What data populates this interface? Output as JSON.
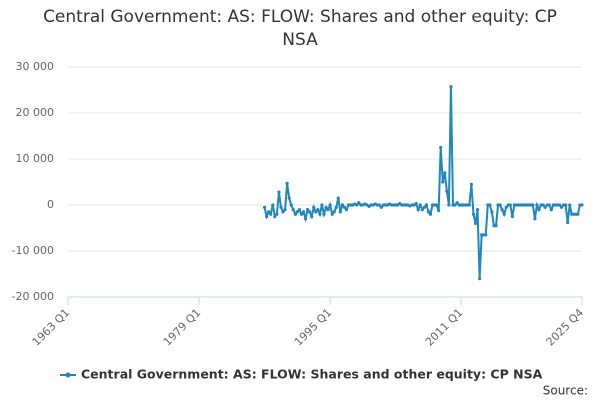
{
  "chart_data": {
    "type": "line",
    "title": "Central Government: AS: FLOW: Shares and other equity: CP NSA",
    "source": "Source:",
    "x": [
      "1987 Q1",
      "1987 Q2",
      "1987 Q3",
      "1987 Q4",
      "1988 Q1",
      "1988 Q2",
      "1988 Q3",
      "1988 Q4",
      "1989 Q1",
      "1989 Q2",
      "1989 Q3",
      "1989 Q4",
      "1990 Q1",
      "1990 Q2",
      "1990 Q3",
      "1990 Q4",
      "1991 Q1",
      "1991 Q2",
      "1991 Q3",
      "1991 Q4",
      "1992 Q1",
      "1992 Q2",
      "1992 Q3",
      "1992 Q4",
      "1993 Q1",
      "1993 Q2",
      "1993 Q3",
      "1993 Q4",
      "1994 Q1",
      "1994 Q2",
      "1994 Q3",
      "1994 Q4",
      "1995 Q1",
      "1995 Q2",
      "1995 Q3",
      "1995 Q4",
      "1996 Q1",
      "1996 Q2",
      "1996 Q3",
      "1996 Q4",
      "1997 Q1",
      "1997 Q2",
      "1997 Q3",
      "1997 Q4",
      "1998 Q1",
      "1998 Q2",
      "1998 Q3",
      "1998 Q4",
      "1999 Q1",
      "1999 Q2",
      "1999 Q3",
      "1999 Q4",
      "2000 Q1",
      "2000 Q2",
      "2000 Q3",
      "2000 Q4",
      "2001 Q1",
      "2001 Q2",
      "2001 Q3",
      "2001 Q4",
      "2002 Q1",
      "2002 Q2",
      "2002 Q3",
      "2002 Q4",
      "2003 Q1",
      "2003 Q2",
      "2003 Q3",
      "2003 Q4",
      "2004 Q1",
      "2004 Q2",
      "2004 Q3",
      "2004 Q4",
      "2005 Q1",
      "2005 Q2",
      "2005 Q3",
      "2005 Q4",
      "2006 Q1",
      "2006 Q2",
      "2006 Q3",
      "2006 Q4",
      "2007 Q1",
      "2007 Q2",
      "2007 Q3",
      "2007 Q4",
      "2008 Q1",
      "2008 Q2",
      "2008 Q3",
      "2008 Q4",
      "2009 Q1",
      "2009 Q2",
      "2009 Q3",
      "2009 Q4",
      "2010 Q1",
      "2010 Q2",
      "2010 Q3",
      "2010 Q4",
      "2011 Q1",
      "2011 Q2",
      "2011 Q3",
      "2011 Q4",
      "2012 Q1",
      "2012 Q2",
      "2012 Q3",
      "2012 Q4",
      "2013 Q1",
      "2013 Q2",
      "2013 Q3",
      "2013 Q4",
      "2014 Q1",
      "2014 Q2",
      "2014 Q3",
      "2014 Q4",
      "2015 Q1",
      "2015 Q2",
      "2015 Q3",
      "2015 Q4",
      "2016 Q1",
      "2016 Q2",
      "2016 Q3",
      "2016 Q4",
      "2017 Q1",
      "2017 Q2",
      "2017 Q3",
      "2017 Q4",
      "2018 Q1",
      "2018 Q2",
      "2018 Q3",
      "2018 Q4",
      "2019 Q1",
      "2019 Q2",
      "2019 Q3",
      "2019 Q4",
      "2020 Q1",
      "2020 Q2",
      "2020 Q3",
      "2020 Q4",
      "2021 Q1",
      "2021 Q2",
      "2021 Q3",
      "2021 Q4",
      "2022 Q1",
      "2022 Q2",
      "2022 Q3",
      "2022 Q4",
      "2023 Q1",
      "2023 Q2",
      "2023 Q3",
      "2023 Q4",
      "2024 Q1",
      "2024 Q2",
      "2024 Q3",
      "2024 Q4",
      "2025 Q1",
      "2025 Q2",
      "2025 Q3",
      "2025 Q4"
    ],
    "series": [
      {
        "name": "Central Government: AS: FLOW: Shares and other equity: CP NSA",
        "color": "#1f86bf",
        "values": [
          -500,
          -2500,
          -1500,
          -2000,
          0,
          -2500,
          -2000,
          2800,
          -500,
          -1500,
          -1000,
          4700,
          1500,
          0,
          -1000,
          -2000,
          -1500,
          -1000,
          -2000,
          -1500,
          -3000,
          -1000,
          -1500,
          -2500,
          -500,
          -1500,
          -1000,
          -2000,
          0,
          -2000,
          -500,
          -1000,
          0,
          -2000,
          -1500,
          -500,
          1500,
          -1500,
          0,
          -500,
          -1000,
          0,
          0,
          0,
          200,
          0,
          500,
          0,
          0,
          200,
          0,
          -300,
          0,
          0,
          200,
          0,
          0,
          -500,
          0,
          0,
          0,
          200,
          0,
          0,
          0,
          0,
          300,
          0,
          0,
          0,
          0,
          -200,
          0,
          0,
          300,
          -1000,
          0,
          -1000,
          -500,
          0,
          -1500,
          -2000,
          0,
          0,
          0,
          -1200,
          12500,
          5000,
          7000,
          3000,
          0,
          25700,
          0,
          0,
          500,
          0,
          0,
          0,
          0,
          0,
          0,
          4500,
          -2000,
          -4000,
          -1000,
          -16000,
          -6500,
          -6500,
          -6500,
          0,
          0,
          -1500,
          -4500,
          -4500,
          0,
          0,
          -1000,
          -2000,
          -500,
          0,
          0,
          -2500,
          0,
          0,
          0,
          0,
          0,
          0,
          0,
          0,
          0,
          0,
          -3000,
          0,
          -1000,
          0,
          0,
          -500,
          0,
          0,
          -1000,
          0,
          0,
          0,
          0,
          -500,
          0,
          0,
          -3800,
          0,
          -2000,
          -2000,
          -2000,
          -2000,
          0,
          0
        ]
      }
    ],
    "xlim": [
      "1963 Q1",
      "2025 Q4"
    ],
    "xticks": [
      "1963 Q1",
      "1979 Q1",
      "1995 Q1",
      "2011 Q1",
      "2025 Q4"
    ],
    "ylim": [
      -20000,
      30000
    ],
    "yticks": [
      {
        "value": -20000,
        "label": "-20 000"
      },
      {
        "value": -10000,
        "label": "-10 000"
      },
      0,
      {
        "value": 10000,
        "label": "10 000"
      },
      {
        "value": 20000,
        "label": "20 000"
      },
      {
        "value": 30000,
        "label": "30 000"
      }
    ],
    "grid": true
  }
}
